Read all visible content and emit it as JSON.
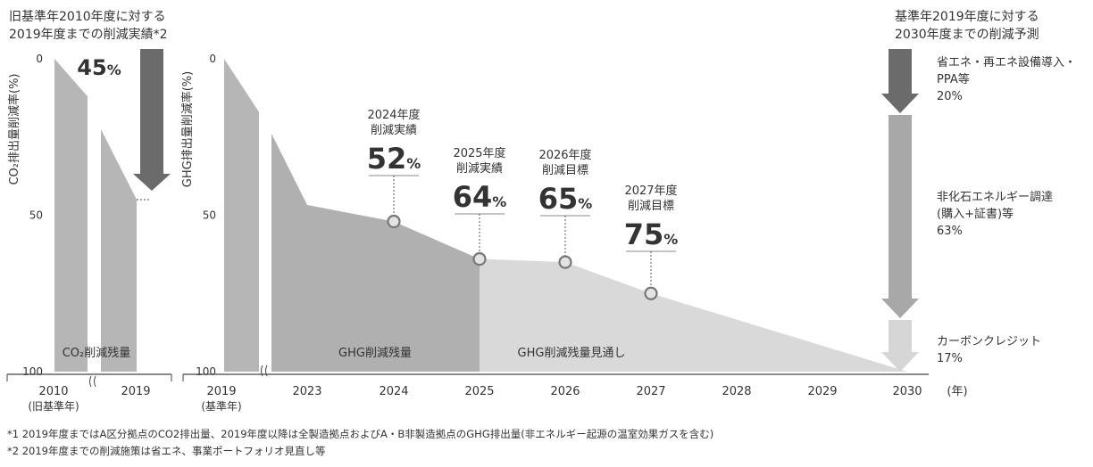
{
  "chart_data": [
    {
      "type": "area",
      "ylabel": "CO₂排出量削減率(%)",
      "yticks": [
        "0",
        "50",
        "100"
      ],
      "ylim": [
        0,
        100
      ],
      "y_reversed": true,
      "categories": [
        "2010",
        "2019"
      ],
      "category_sublabels": [
        "(旧基準年)",
        ""
      ],
      "values": [
        0,
        45
      ],
      "header": [
        "旧基準年2010年度に対する",
        "2019年度までの削減実績*2"
      ],
      "result_value": "45",
      "result_unit": "%",
      "area_label": "CO₂削減残量"
    },
    {
      "type": "area",
      "ylabel": "GHG排出量削減率(%)",
      "yticks": [
        "0",
        "50",
        "100"
      ],
      "ylim": [
        0,
        100
      ],
      "y_reversed": true,
      "categories": [
        "2019",
        "2023",
        "2024",
        "2025",
        "2026",
        "2027",
        "2028",
        "2029",
        "2030"
      ],
      "category_sublabels": [
        "(基準年)",
        "",
        "",
        "",
        "",
        "",
        "",
        "",
        ""
      ],
      "x_unit": "(年)",
      "series": [
        {
          "name": "GHG削減残量",
          "x": [
            "2019",
            "2023",
            "2024",
            "2025"
          ],
          "values": [
            0,
            48,
            52,
            64
          ]
        },
        {
          "name": "GHG削減残量見通し",
          "x": [
            "2025",
            "2026",
            "2027",
            "2030"
          ],
          "values": [
            64,
            65,
            75,
            100
          ]
        }
      ],
      "annotations": [
        {
          "x": "2024",
          "y": 52,
          "lines": [
            "2024年度",
            "削減実績"
          ],
          "value": "52",
          "unit": "%",
          "highlight": false
        },
        {
          "x": "2025",
          "y": 64,
          "lines": [
            "2025年度",
            "削減実績"
          ],
          "value": "64",
          "unit": "%",
          "highlight": true
        },
        {
          "x": "2026",
          "y": 65,
          "lines": [
            "2026年度",
            "削減目標"
          ],
          "value": "65",
          "unit": "%",
          "highlight": false
        },
        {
          "x": "2027",
          "y": 75,
          "lines": [
            "2027年度",
            "削減目標"
          ],
          "value": "75",
          "unit": "%",
          "highlight": false
        }
      ],
      "header": [
        "基準年2019年度に対する",
        "2030年度までの削減予測"
      ],
      "breakdown": [
        {
          "lines": [
            "省エネ・再エネ設備導入・",
            "PPA等"
          ],
          "value": "20%",
          "share": 20
        },
        {
          "lines": [
            "非化石エネルギー調達",
            "(購入+証書)等"
          ],
          "value": "63%",
          "share": 63
        },
        {
          "lines": [
            "カーボンクレジット"
          ],
          "value": "17%",
          "share": 17
        }
      ]
    }
  ],
  "colors": {
    "axis": "#444444",
    "text": "#333333",
    "highlight": "#c0161e",
    "base_bar": "#b6b6b6",
    "area_actual": "#b0b0b0",
    "area_forecast": "#d9d9d9",
    "arrow_dark": "#6b6b6b",
    "arrow_mid": "#a8a8a8",
    "arrow_light": "#d6d6d6",
    "marker_fill": "#e3e3e3",
    "marker_stroke": "#777777"
  },
  "footnotes": [
    "*1 2019年度まではA区分拠点のCO2排出量、2019年度以降は全製造拠点およびA・B非製造拠点のGHG排出量(非エネルギー起源の温室効果ガスを含む)",
    "*2 2019年度までの削減施策は省エネ、事業ポートフォリオ見直し等"
  ]
}
